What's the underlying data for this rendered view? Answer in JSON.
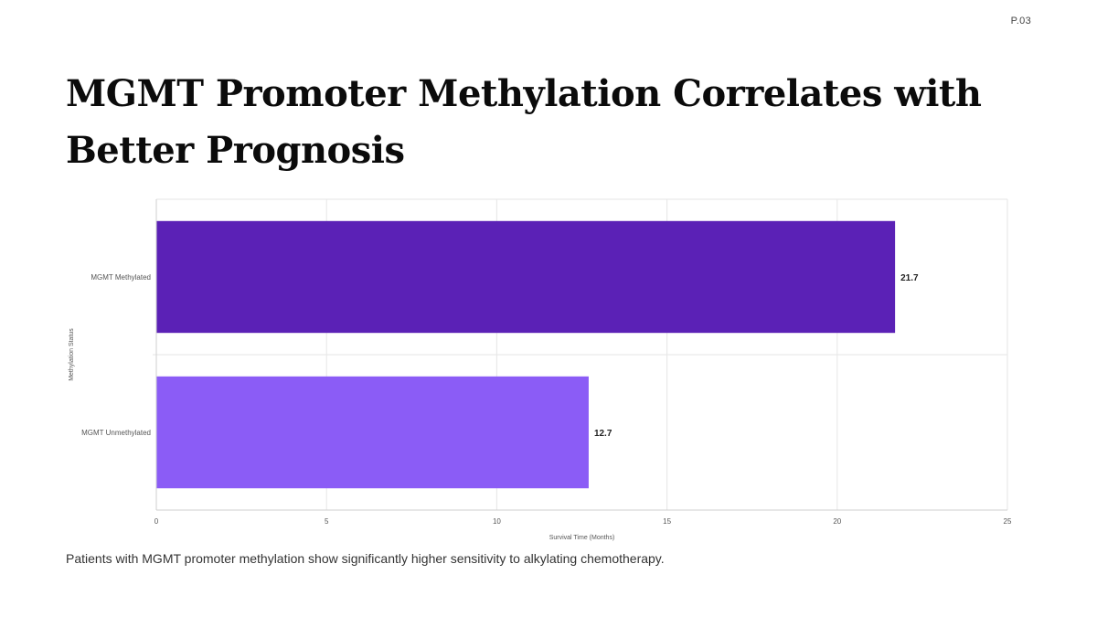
{
  "page": {
    "number": "P.03",
    "title": "MGMT Promoter Methylation Correlates with Better Prognosis",
    "caption": "Patients with MGMT promoter methylation show significantly higher sensitivity to alkylating chemotherapy."
  },
  "chart_data": {
    "type": "bar",
    "orientation": "horizontal",
    "categories": [
      "MGMT Methylated",
      "MGMT Unmethylated"
    ],
    "values": [
      21.7,
      12.7
    ],
    "data_labels": [
      "21.7",
      "12.7"
    ],
    "colors": [
      "#5b21b6",
      "#8b5cf6"
    ],
    "xlabel": "Survival Time (Months)",
    "ylabel": "Methylation Status",
    "xlim": [
      0,
      25
    ],
    "xticks": [
      0,
      5,
      10,
      15,
      20,
      25
    ],
    "xtick_labels": [
      "0",
      "5",
      "10",
      "15",
      "20",
      "25"
    ],
    "grid": true,
    "legend": "none"
  }
}
